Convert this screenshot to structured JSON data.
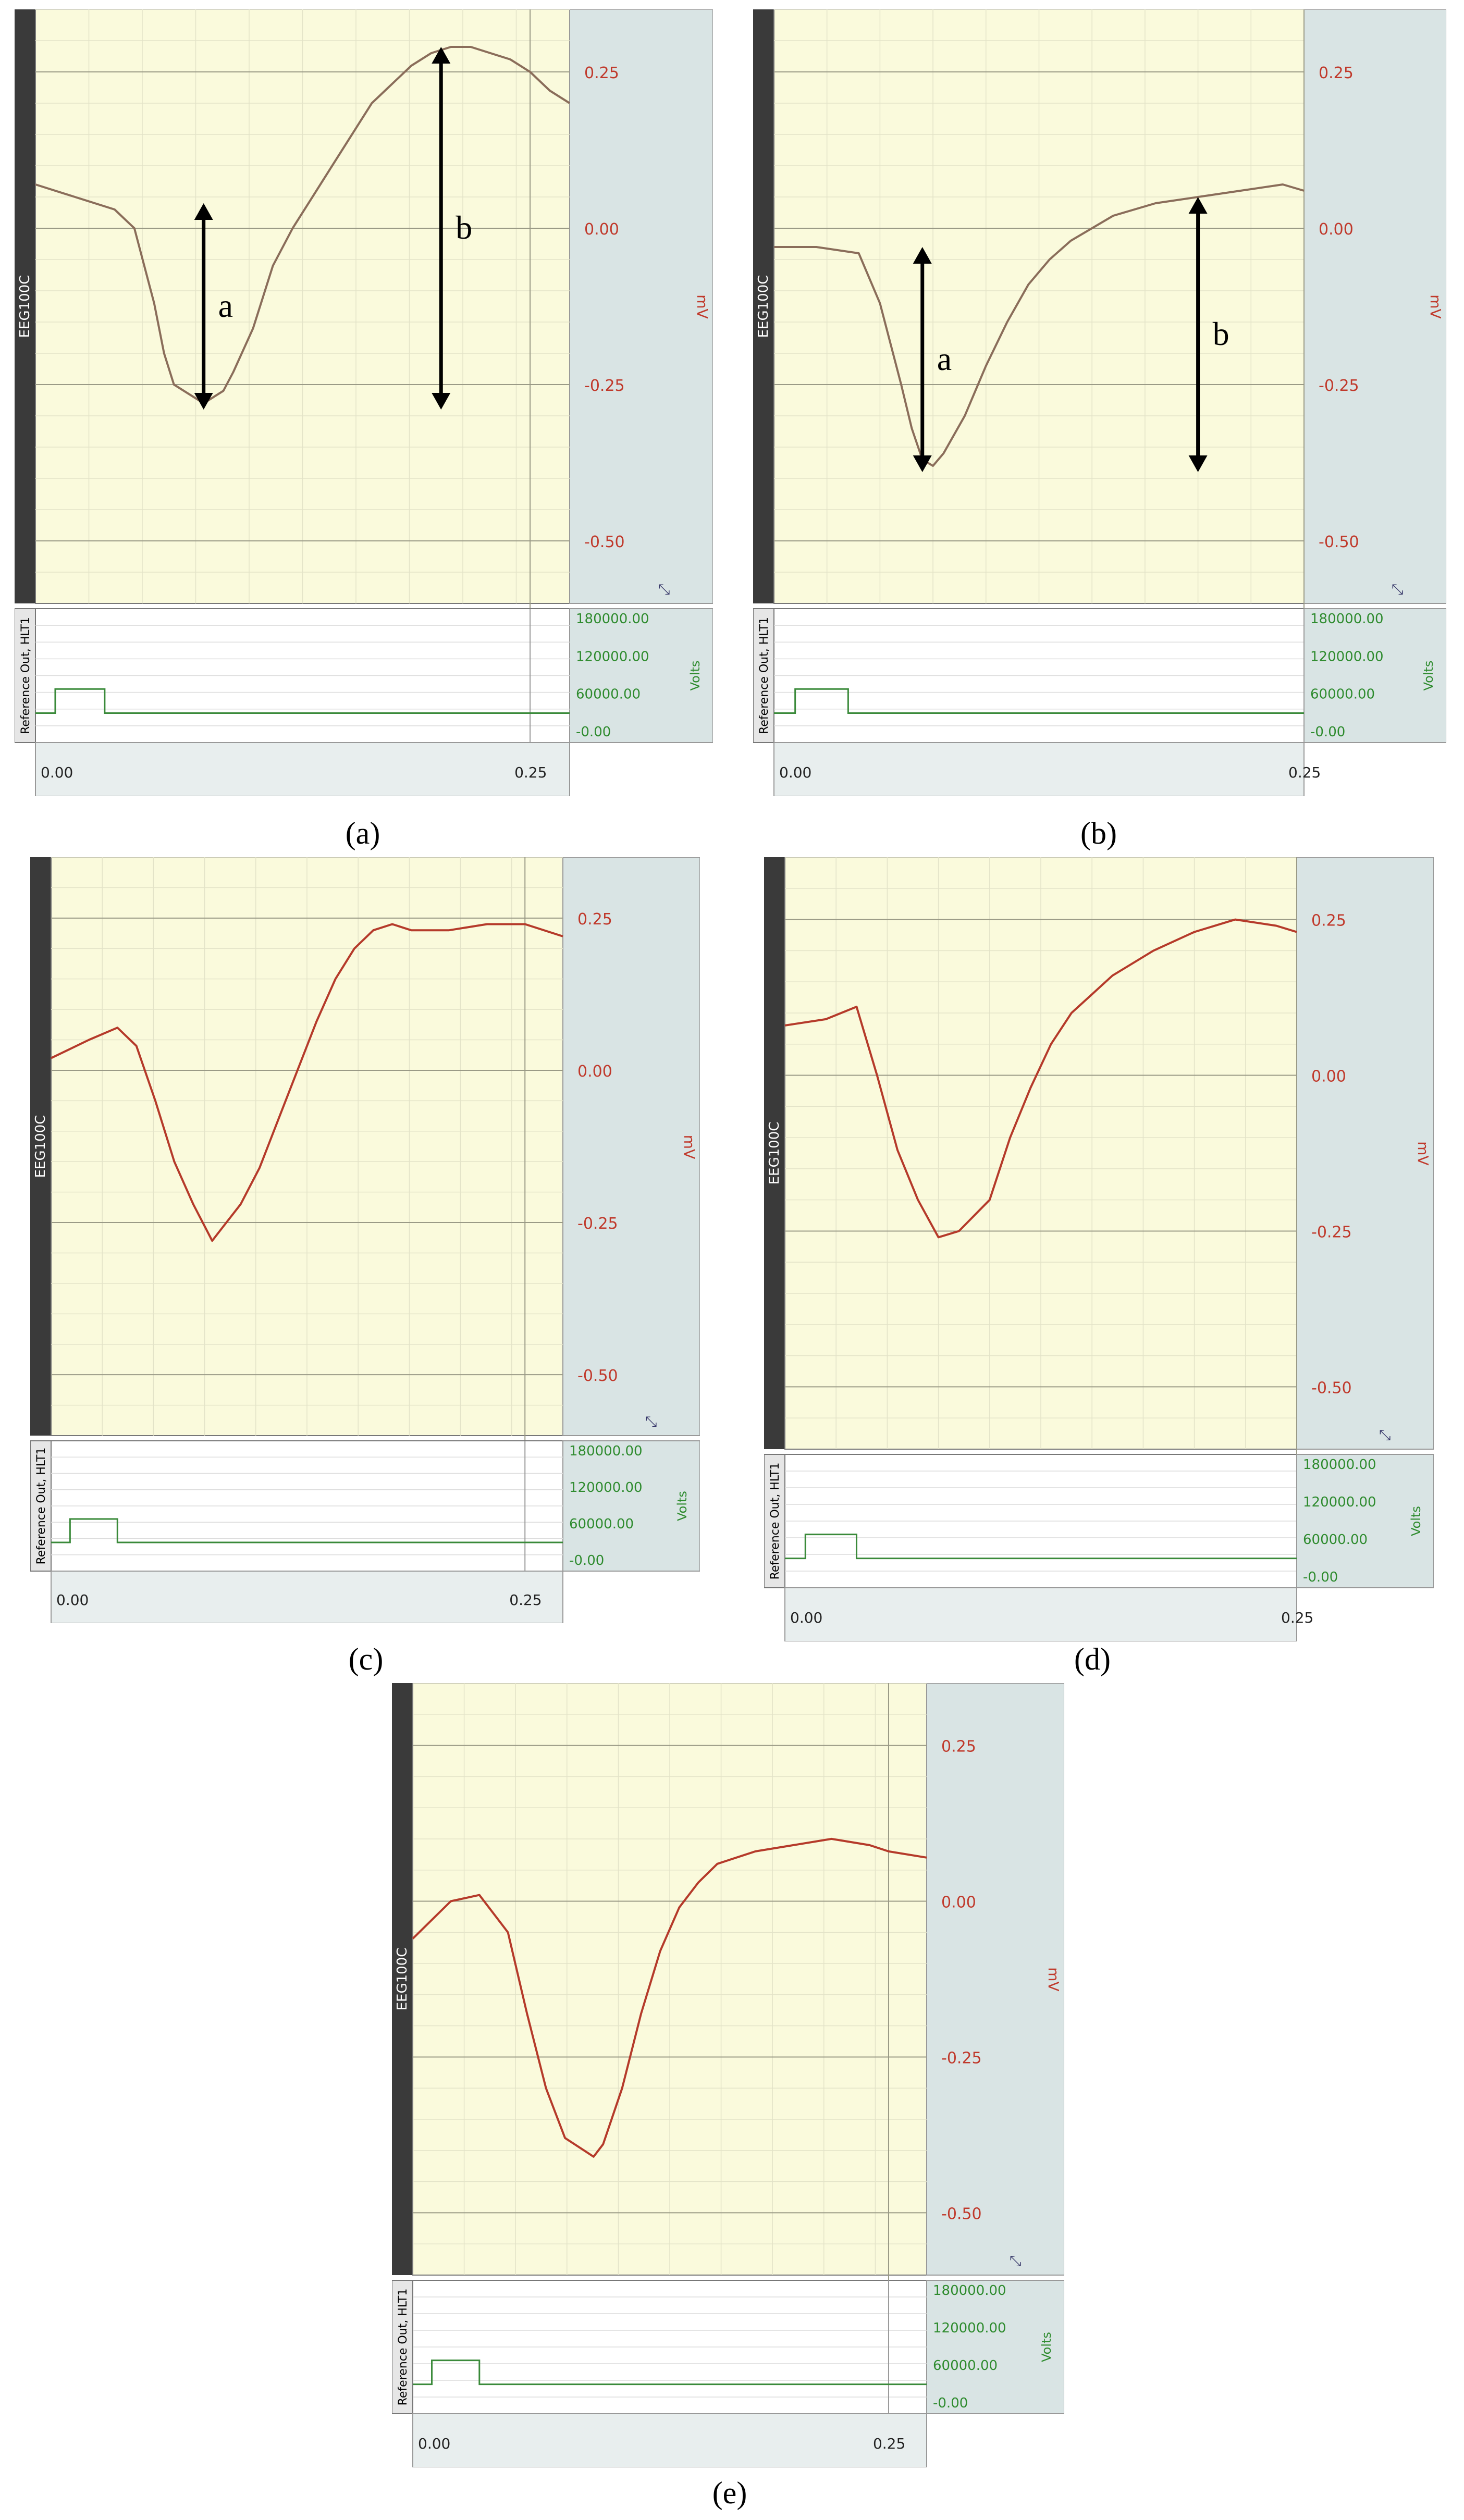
{
  "common": {
    "top_channel_label": "EEG100C",
    "top_unit": "mV",
    "bottom_channel_label": "Reference Out, HLT1",
    "bottom_unit": "Volts",
    "top_ticks": [
      "0.25",
      "0.00",
      "-0.25",
      "-0.50"
    ],
    "bottom_ticks": [
      "180000.00",
      "120000.00",
      "60000.00",
      "-0.00"
    ],
    "x_ticks": [
      "0.00",
      "0.25"
    ],
    "colors": {
      "plot_bg": "#fafadc",
      "side_bg": "#d9e4e4",
      "dark_bar": "#3a3a3a",
      "mv_text": "#c0392b",
      "volts_text": "#2e8b2e",
      "trace_red": "#b53a2a",
      "trace_brown": "#8a6d5a",
      "pulse": "#3a8a3a"
    }
  },
  "panels": [
    {
      "id": "a",
      "caption": "(a)",
      "trace_color_key": "trace_brown",
      "arrows": [
        {
          "label": "a",
          "x": 0.085,
          "from": 0.04,
          "to": -0.29
        },
        {
          "label": "b",
          "x": 0.205,
          "from": 0.29,
          "to": -0.29
        }
      ],
      "chart_data": {
        "type": "line",
        "x": [
          0.0,
          0.02,
          0.04,
          0.05,
          0.06,
          0.065,
          0.07,
          0.075,
          0.08,
          0.085,
          0.09,
          0.095,
          0.1,
          0.11,
          0.12,
          0.13,
          0.14,
          0.15,
          0.16,
          0.17,
          0.18,
          0.19,
          0.2,
          0.21,
          0.22,
          0.23,
          0.24,
          0.25,
          0.26,
          0.27
        ],
        "series": [
          {
            "values": [
              0.07,
              0.05,
              0.03,
              0.0,
              -0.12,
              -0.2,
              -0.25,
              -0.26,
              -0.27,
              -0.28,
              -0.27,
              -0.26,
              -0.23,
              -0.16,
              -0.06,
              0.0,
              0.05,
              0.1,
              0.15,
              0.2,
              0.23,
              0.26,
              0.28,
              0.29,
              0.29,
              0.28,
              0.27,
              0.25,
              0.22,
              0.2
            ]
          }
        ],
        "ylim": [
          -0.6,
          0.35
        ],
        "xlim": [
          0,
          0.27
        ]
      }
    },
    {
      "id": "b",
      "caption": "(b)",
      "trace_color_key": "trace_brown",
      "arrows": [
        {
          "label": "a",
          "x": 0.07,
          "from": -0.03,
          "to": -0.39
        },
        {
          "label": "b",
          "x": 0.2,
          "from": 0.05,
          "to": -0.39
        }
      ],
      "chart_data": {
        "type": "line",
        "x": [
          0.0,
          0.02,
          0.04,
          0.05,
          0.06,
          0.065,
          0.07,
          0.075,
          0.08,
          0.09,
          0.1,
          0.11,
          0.12,
          0.13,
          0.14,
          0.15,
          0.16,
          0.18,
          0.2,
          0.22,
          0.24,
          0.25
        ],
        "series": [
          {
            "values": [
              -0.03,
              -0.03,
              -0.04,
              -0.12,
              -0.25,
              -0.32,
              -0.37,
              -0.38,
              -0.36,
              -0.3,
              -0.22,
              -0.15,
              -0.09,
              -0.05,
              -0.02,
              0.0,
              0.02,
              0.04,
              0.05,
              0.06,
              0.07,
              0.06
            ]
          }
        ],
        "ylim": [
          -0.6,
          0.35
        ],
        "xlim": [
          0,
          0.25
        ]
      }
    },
    {
      "id": "c",
      "caption": "(c)",
      "trace_color_key": "trace_red",
      "arrows": [],
      "chart_data": {
        "type": "line",
        "x": [
          0.0,
          0.02,
          0.035,
          0.045,
          0.055,
          0.065,
          0.075,
          0.08,
          0.085,
          0.09,
          0.1,
          0.11,
          0.12,
          0.13,
          0.14,
          0.15,
          0.16,
          0.17,
          0.18,
          0.19,
          0.21,
          0.23,
          0.25,
          0.27
        ],
        "series": [
          {
            "values": [
              0.02,
              0.05,
              0.07,
              0.04,
              -0.05,
              -0.15,
              -0.22,
              -0.25,
              -0.28,
              -0.26,
              -0.22,
              -0.16,
              -0.08,
              0.0,
              0.08,
              0.15,
              0.2,
              0.23,
              0.24,
              0.23,
              0.23,
              0.24,
              0.24,
              0.22
            ]
          }
        ],
        "ylim": [
          -0.6,
          0.35
        ],
        "xlim": [
          0,
          0.27
        ]
      }
    },
    {
      "id": "d",
      "caption": "(d)",
      "trace_color_key": "trace_red",
      "arrows": [],
      "chart_data": {
        "type": "line",
        "x": [
          0.0,
          0.02,
          0.035,
          0.045,
          0.055,
          0.065,
          0.075,
          0.085,
          0.1,
          0.11,
          0.12,
          0.13,
          0.14,
          0.15,
          0.16,
          0.18,
          0.2,
          0.22,
          0.24,
          0.25
        ],
        "series": [
          {
            "values": [
              0.08,
              0.09,
              0.11,
              0.0,
              -0.12,
              -0.2,
              -0.26,
              -0.25,
              -0.2,
              -0.1,
              -0.02,
              0.05,
              0.1,
              0.13,
              0.16,
              0.2,
              0.23,
              0.25,
              0.24,
              0.23
            ]
          }
        ],
        "ylim": [
          -0.6,
          0.35
        ],
        "xlim": [
          0,
          0.25
        ]
      }
    },
    {
      "id": "e",
      "caption": "(e)",
      "trace_color_key": "trace_red",
      "arrows": [],
      "chart_data": {
        "type": "line",
        "x": [
          0.0,
          0.02,
          0.035,
          0.05,
          0.06,
          0.07,
          0.08,
          0.09,
          0.095,
          0.1,
          0.11,
          0.12,
          0.13,
          0.14,
          0.15,
          0.16,
          0.18,
          0.2,
          0.22,
          0.24,
          0.25,
          0.27
        ],
        "series": [
          {
            "values": [
              -0.06,
              0.0,
              0.01,
              -0.05,
              -0.18,
              -0.3,
              -0.38,
              -0.4,
              -0.41,
              -0.39,
              -0.3,
              -0.18,
              -0.08,
              -0.01,
              0.03,
              0.06,
              0.08,
              0.09,
              0.1,
              0.09,
              0.08,
              0.07
            ]
          }
        ],
        "ylim": [
          -0.6,
          0.35
        ],
        "xlim": [
          0,
          0.27
        ]
      }
    }
  ]
}
